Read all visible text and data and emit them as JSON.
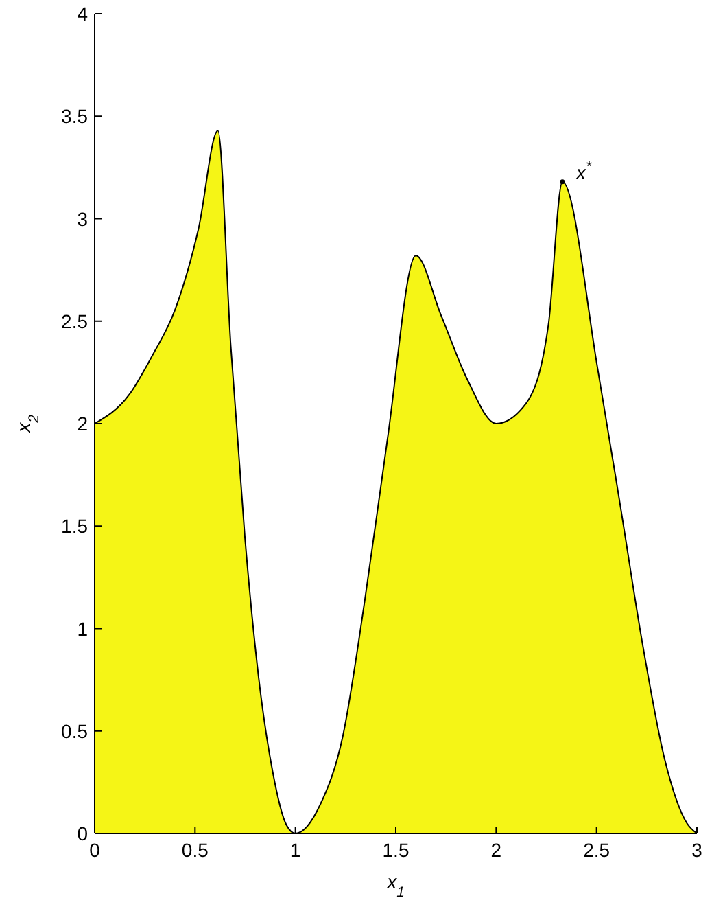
{
  "chart_data": {
    "type": "area",
    "xlabel": "x$_{1}$",
    "ylabel": "x$_{2}$",
    "x": [
      0,
      0.171,
      0.286,
      0.402,
      0.517,
      0.614,
      0.678,
      0.748,
      0.817,
      0.887,
      0.956,
      1.0,
      1.123,
      1.235,
      1.346,
      1.458,
      1.6,
      1.725,
      1.859,
      2.0,
      2.15,
      2.26,
      2.33,
      2.507,
      2.62,
      2.73,
      2.84,
      2.95,
      3.0
    ],
    "series": [
      {
        "color": "#f5f516",
        "values": [
          2.0,
          2.14,
          2.33,
          2.56,
          2.95,
          3.43,
          2.38,
          1.45,
          0.76,
          0.3,
          0.04,
          0,
          0.14,
          0.47,
          1.14,
          1.92,
          2.82,
          2.53,
          2.21,
          2.0,
          2.1,
          2.48,
          3.18,
          2.26,
          1.59,
          0.92,
          0.36,
          0.05,
          0
        ]
      }
    ],
    "xlim": [
      0,
      3
    ],
    "xticks": [
      0,
      0.5,
      1,
      1.5,
      2,
      2.5,
      3
    ],
    "ylim": [
      0,
      4
    ],
    "yticks": [
      0,
      0.5,
      1,
      1.5,
      2,
      2.5,
      3,
      3.5,
      4
    ],
    "annotations": [
      {
        "text": "x$^{*}$",
        "x": 2.33,
        "y": 3.18
      }
    ],
    "grid": false,
    "marker": "none",
    "line_style": "solid"
  }
}
